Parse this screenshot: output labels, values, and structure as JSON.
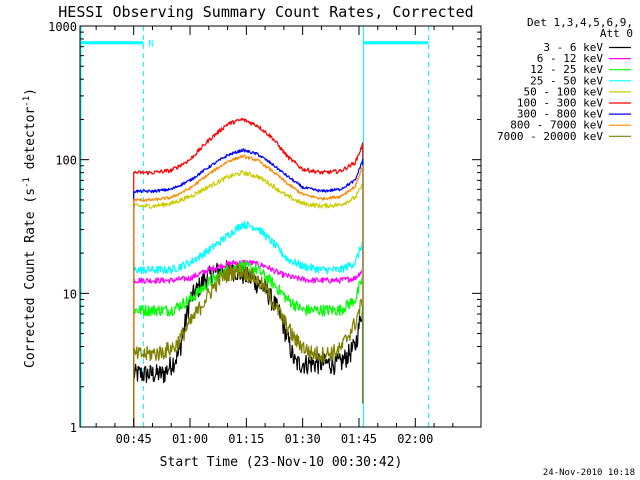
{
  "chart_data": {
    "type": "line",
    "title": "HESSI Observing Summary Count Rates, Corrected",
    "xlabel": "Start Time (23-Nov-10 00:30:42)",
    "ylabel_parts": [
      "Corrected Count Rate (s",
      "-1",
      " detector",
      "-1",
      ")"
    ],
    "yscale": "log",
    "ylim": [
      1,
      1000
    ],
    "xlim_minutes": [
      30.7,
      137.5
    ],
    "x_ticks": [
      {
        "m": 45,
        "label": "00:45"
      },
      {
        "m": 60,
        "label": "01:00"
      },
      {
        "m": 75,
        "label": "01:15"
      },
      {
        "m": 90,
        "label": "01:30"
      },
      {
        "m": 105,
        "label": "01:45"
      },
      {
        "m": 120,
        "label": "02:00"
      }
    ],
    "y_ticks": [
      {
        "v": 1,
        "label": "1"
      },
      {
        "v": 10,
        "label": "10"
      },
      {
        "v": 100,
        "label": "100"
      },
      {
        "v": 1000,
        "label": "1000"
      }
    ],
    "legend_header": [
      "Det 1,3,4,5,6,9,",
      "Att 0"
    ],
    "legend_placement": "right",
    "series": [
      {
        "name": "3 - 6 keV",
        "color": "#000000",
        "x": [
          45,
          48,
          53,
          57,
          60,
          64,
          68,
          72,
          76,
          80,
          84,
          88,
          92,
          96,
          100,
          104,
          106
        ],
        "y": [
          2.5,
          2.5,
          2.5,
          3.5,
          9,
          13,
          15,
          15,
          13,
          11,
          7,
          3,
          3,
          3,
          3,
          4,
          8
        ]
      },
      {
        "name": "6 - 12 keV",
        "color": "#ff00ff",
        "x": [
          45,
          50,
          55,
          60,
          65,
          68,
          72,
          76,
          80,
          84,
          88,
          92,
          96,
          100,
          104,
          106
        ],
        "y": [
          12.5,
          12.5,
          12.5,
          13,
          15,
          16,
          17,
          17,
          16,
          14,
          13,
          12.5,
          12.5,
          12.5,
          13,
          15
        ]
      },
      {
        "name": "12 - 25 keV",
        "color": "#00ff00",
        "x": [
          45,
          50,
          55,
          60,
          65,
          70,
          74,
          78,
          82,
          86,
          90,
          95,
          100,
          104,
          106
        ],
        "y": [
          7.5,
          7.5,
          7.5,
          9,
          12,
          15,
          16,
          15,
          12,
          9,
          7.5,
          7.5,
          7.5,
          9,
          13
        ]
      },
      {
        "name": "25 - 50 keV",
        "color": "#00ffff",
        "x": [
          45,
          50,
          55,
          60,
          65,
          70,
          74,
          78,
          82,
          86,
          90,
          95,
          100,
          104,
          106
        ],
        "y": [
          15,
          15,
          15,
          17,
          21,
          27,
          33,
          31,
          24,
          18,
          16,
          15,
          15,
          17,
          24
        ]
      },
      {
        "name": "50 - 100 keV",
        "color": "#cccc00",
        "x": [
          45,
          50,
          55,
          60,
          65,
          70,
          74,
          78,
          82,
          86,
          90,
          95,
          100,
          104,
          106
        ],
        "y": [
          45,
          45,
          47,
          53,
          63,
          74,
          80,
          75,
          64,
          53,
          47,
          45,
          46,
          52,
          65
        ]
      },
      {
        "name": "100 - 300 keV",
        "color": "#ff0000",
        "x": [
          45,
          50,
          55,
          60,
          65,
          70,
          74,
          78,
          82,
          86,
          90,
          95,
          100,
          104,
          106
        ],
        "y": [
          80,
          80,
          83,
          100,
          140,
          185,
          200,
          180,
          145,
          105,
          85,
          80,
          82,
          95,
          130
        ]
      },
      {
        "name": "300 - 800 keV",
        "color": "#0000ff",
        "x": [
          45,
          50,
          55,
          60,
          65,
          70,
          74,
          78,
          82,
          86,
          90,
          95,
          100,
          104,
          106
        ],
        "y": [
          58,
          58,
          60,
          70,
          88,
          108,
          118,
          110,
          92,
          75,
          62,
          58,
          60,
          70,
          100
        ]
      },
      {
        "name": "800 - 7000 keV",
        "color": "#ff8800",
        "x": [
          45,
          50,
          55,
          60,
          65,
          70,
          74,
          78,
          82,
          86,
          90,
          95,
          100,
          104,
          106
        ],
        "y": [
          50,
          50,
          52,
          61,
          78,
          97,
          106,
          99,
          82,
          66,
          55,
          51,
          53,
          63,
          90
        ]
      },
      {
        "name": "7000 - 20000 keV",
        "color": "#808000",
        "x": [
          45,
          48,
          52,
          56,
          60,
          64,
          68,
          72,
          76,
          80,
          84,
          88,
          92,
          96,
          100,
          104,
          106
        ],
        "y": [
          3.5,
          3.5,
          3.6,
          4,
          6,
          9,
          13,
          15,
          14,
          11,
          7,
          4.5,
          3.6,
          3.5,
          3.8,
          6,
          9
        ]
      }
    ],
    "night_bars": [
      {
        "x0": 30.7,
        "x1": 47.6,
        "label": "N"
      },
      {
        "x0": 106.2,
        "x1": 123.5,
        "label": ""
      }
    ],
    "footer": "24-Nov-2010 10:18"
  }
}
